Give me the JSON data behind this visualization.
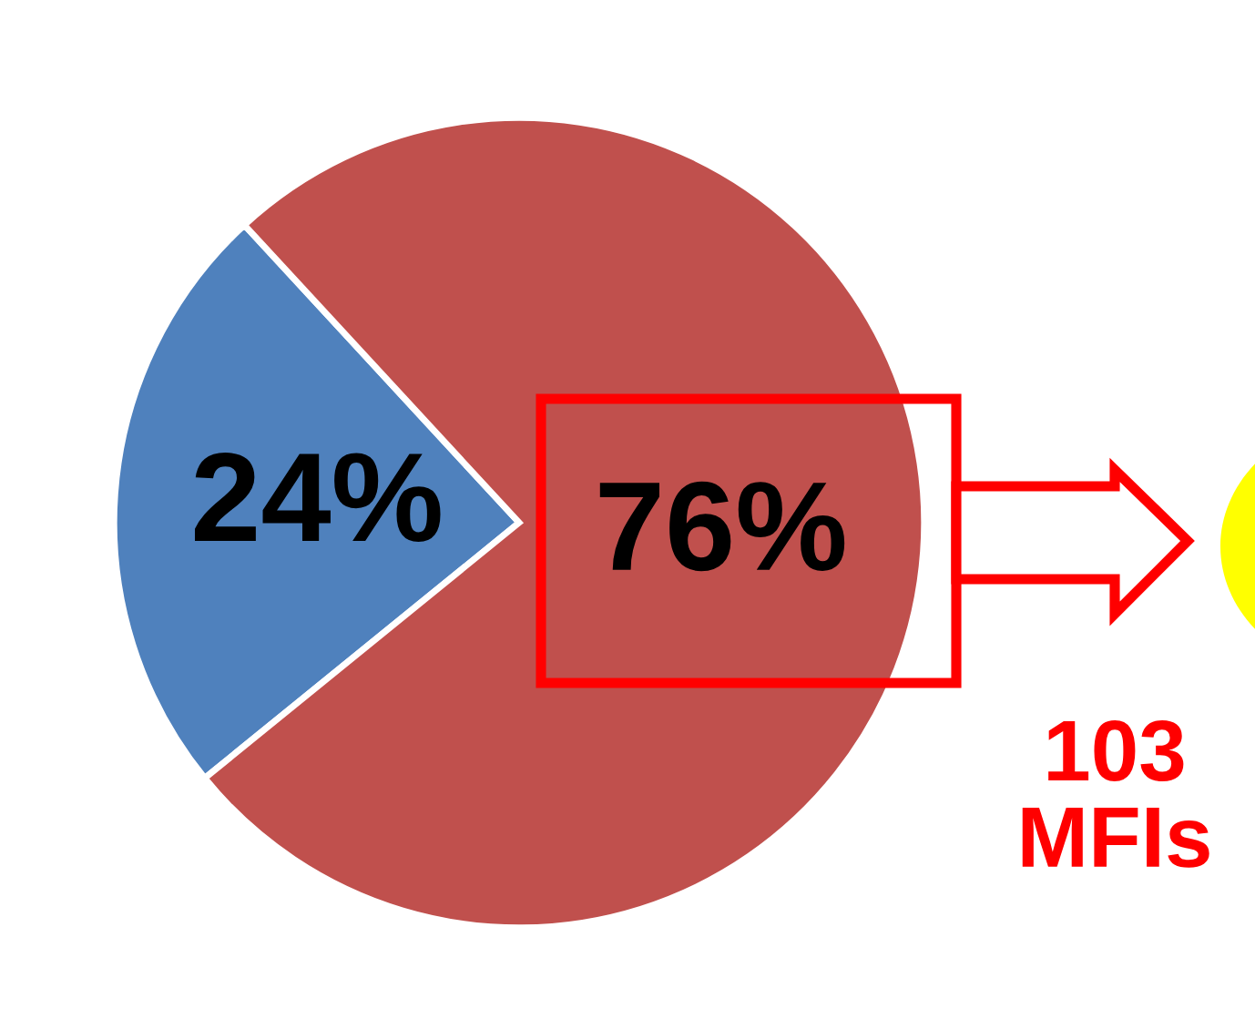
{
  "chart_data": {
    "type": "pie",
    "categories": [
      null,
      null
    ],
    "values": [
      24,
      76
    ],
    "colors": [
      "#4f81bd",
      "#c0504d"
    ],
    "value_labels": [
      "24%",
      "76%"
    ],
    "annotations": [
      "103\nMFIs"
    ]
  }
}
